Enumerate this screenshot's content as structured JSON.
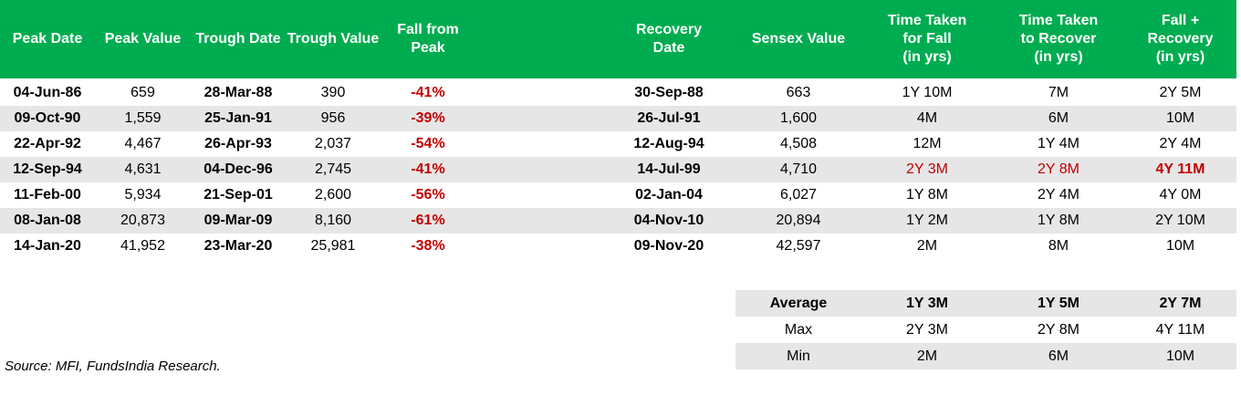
{
  "colors": {
    "header_green": "#00AC50",
    "stripe_gray": "#E7E6E6",
    "negative_red": "#C00000",
    "text_black": "#000000"
  },
  "chart_data": {
    "type": "table",
    "columns": [
      "Peak Date",
      "Peak Value",
      "Trough Date",
      "Trough Value",
      "Fall from\nPeak",
      "Recovery\nDate",
      "Sensex Value",
      "Time Taken\nfor Fall\n(in yrs)",
      "Time Taken\nto Recover\n(in yrs)",
      "Fall +\nRecovery\n(in yrs)"
    ],
    "rows": [
      [
        "04-Jun-86",
        "659",
        "28-Mar-88",
        "390",
        "-41%",
        "30-Sep-88",
        "663",
        "1Y 10M",
        "7M",
        "2Y 5M"
      ],
      [
        "09-Oct-90",
        "1,559",
        "25-Jan-91",
        "956",
        "-39%",
        "26-Jul-91",
        "1,600",
        "4M",
        "6M",
        "10M"
      ],
      [
        "22-Apr-92",
        "4,467",
        "26-Apr-93",
        "2,037",
        "-54%",
        "12-Aug-94",
        "4,508",
        "12M",
        "1Y 4M",
        "2Y 4M"
      ],
      [
        "12-Sep-94",
        "4,631",
        "04-Dec-96",
        "2,745",
        "-41%",
        "14-Jul-99",
        "4,710",
        "2Y 3M",
        "2Y 8M",
        "4Y 11M"
      ],
      [
        "11-Feb-00",
        "5,934",
        "21-Sep-01",
        "2,600",
        "-56%",
        "02-Jan-04",
        "6,027",
        "1Y 8M",
        "2Y 4M",
        "4Y 0M"
      ],
      [
        "08-Jan-08",
        "20,873",
        "09-Mar-09",
        "8,160",
        "-61%",
        "04-Nov-10",
        "20,894",
        "1Y 2M",
        "1Y 8M",
        "2Y 10M"
      ],
      [
        "14-Jan-20",
        "41,952",
        "23-Mar-20",
        "25,981",
        "-38%",
        "09-Nov-20",
        "42,597",
        "2M",
        "8M",
        "10M"
      ]
    ],
    "summary": [
      [
        "Average",
        "1Y 3M",
        "1Y 5M",
        "2Y 7M"
      ],
      [
        "Max",
        "2Y 3M",
        "2Y 8M",
        "4Y 11M"
      ],
      [
        "Min",
        "2M",
        "6M",
        "10M"
      ]
    ]
  },
  "source": "Source: MFI, FundsIndia Research."
}
